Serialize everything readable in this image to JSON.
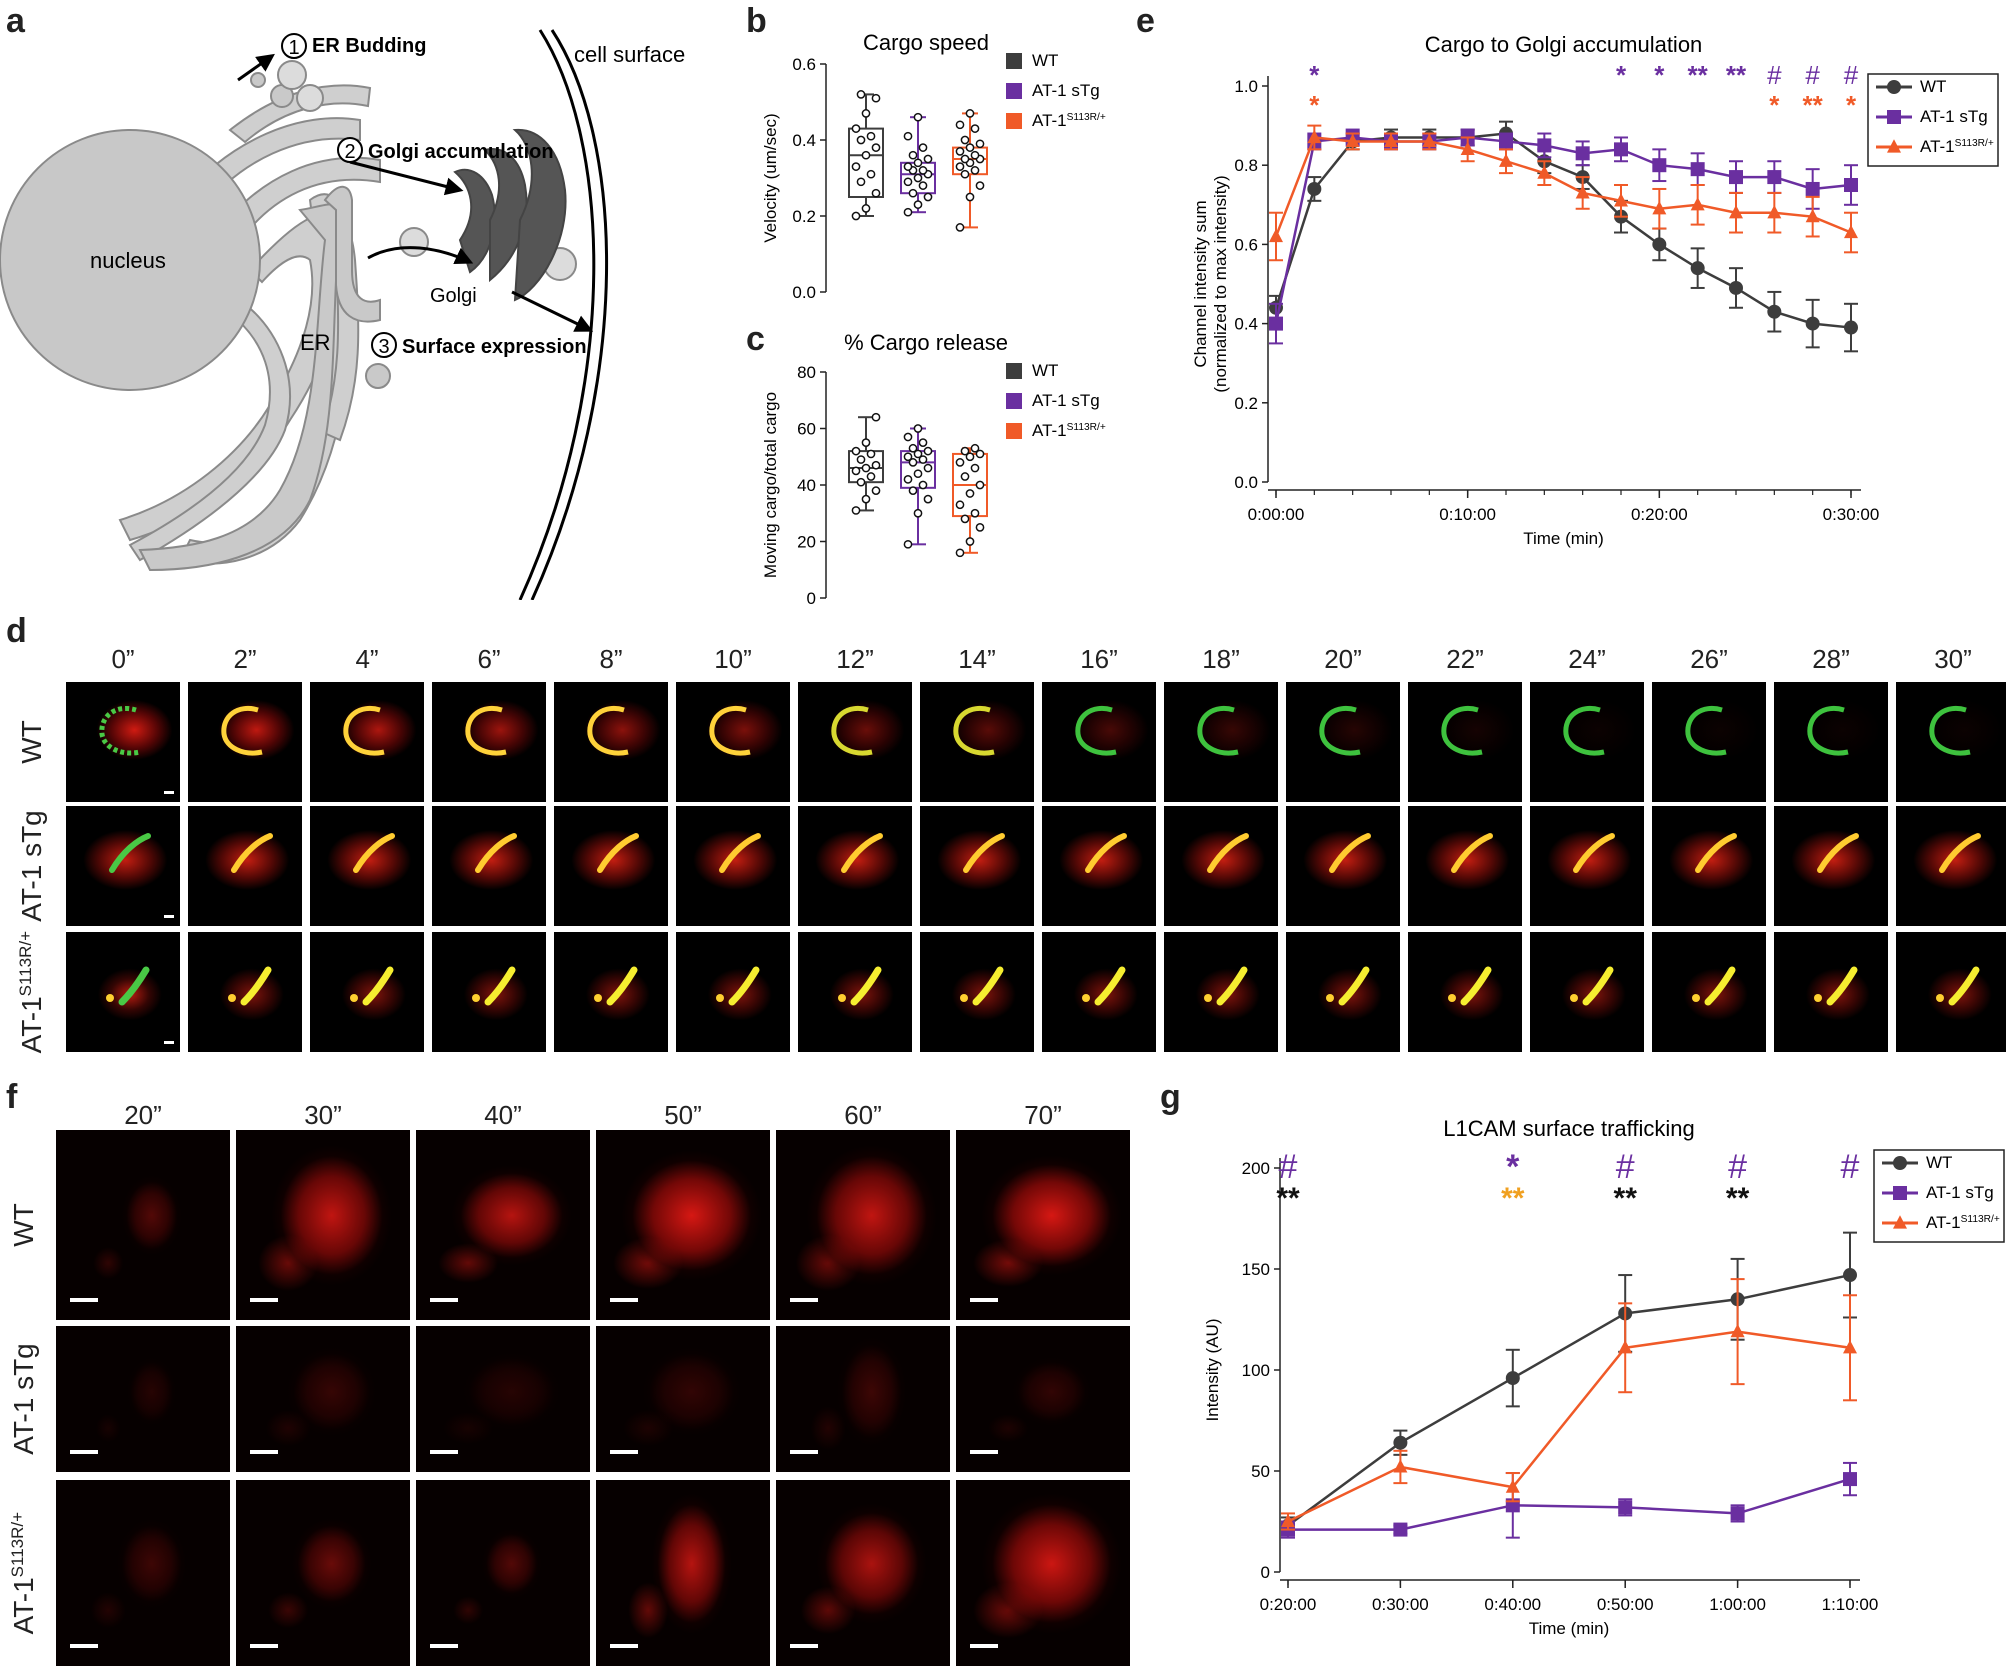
{
  "panels": {
    "a": {
      "letter": "a",
      "labels": {
        "nucleus": "nucleus",
        "er": "ER",
        "golgi": "Golgi",
        "cell_surface": "cell surface",
        "step1_num": "1",
        "step1": "ER Budding",
        "step2_num": "2",
        "step2": "Golgi accumulation",
        "step3_num": "3",
        "step3": "Surface expression"
      }
    },
    "b": {
      "letter": "b"
    },
    "c": {
      "letter": "c"
    },
    "d": {
      "letter": "d",
      "timepoints": [
        "0”",
        "2”",
        "4”",
        "6”",
        "8”",
        "10”",
        "12”",
        "14”",
        "16”",
        "18”",
        "20”",
        "22”",
        "24”",
        "26”",
        "28”",
        "30”"
      ],
      "rows": [
        "WT",
        "AT-1 sTg",
        "AT-1",
        "S113R/+"
      ]
    },
    "e": {
      "letter": "e"
    },
    "f": {
      "letter": "f",
      "timepoints": [
        "20”",
        "30”",
        "40”",
        "50”",
        "60”",
        "70”"
      ],
      "rows": [
        "WT",
        "AT-1 sTg",
        "AT-1",
        "S113R/+"
      ]
    },
    "g": {
      "letter": "g"
    }
  },
  "colors": {
    "wt": "#3d3d3d",
    "sTg": "#6a2fa0",
    "s113r": "#f05a28"
  },
  "chart_data": [
    {
      "id": "b",
      "type": "box",
      "title": "Cargo speed",
      "ylabel": "Velocity (um/sec)",
      "ylim": [
        0,
        0.6
      ],
      "yticks": [
        "0.0",
        "0.2",
        "0.4",
        "0.6"
      ],
      "legend": [
        "WT",
        "AT-1 sTg",
        "AT-1",
        "S113R/+"
      ],
      "groups": [
        {
          "name": "WT",
          "min": 0.2,
          "q1": 0.25,
          "median": 0.36,
          "q3": 0.43,
          "max": 0.52,
          "points": [
            0.2,
            0.22,
            0.26,
            0.29,
            0.31,
            0.33,
            0.36,
            0.38,
            0.4,
            0.41,
            0.43,
            0.47,
            0.51,
            0.52
          ]
        },
        {
          "name": "AT-1 sTg",
          "min": 0.21,
          "q1": 0.26,
          "median": 0.31,
          "q3": 0.34,
          "max": 0.46,
          "points": [
            0.21,
            0.23,
            0.25,
            0.26,
            0.28,
            0.29,
            0.3,
            0.31,
            0.32,
            0.32,
            0.33,
            0.34,
            0.35,
            0.36,
            0.38,
            0.41,
            0.46
          ]
        },
        {
          "name": "S113R/+",
          "min": 0.17,
          "q1": 0.31,
          "median": 0.35,
          "q3": 0.38,
          "max": 0.47,
          "points": [
            0.17,
            0.25,
            0.28,
            0.31,
            0.32,
            0.33,
            0.34,
            0.35,
            0.35,
            0.36,
            0.37,
            0.38,
            0.39,
            0.4,
            0.43,
            0.44,
            0.47
          ]
        }
      ]
    },
    {
      "id": "c",
      "type": "box",
      "title": "% Cargo release",
      "ylabel": "Moving cargo/total cargo",
      "ylim": [
        0,
        80
      ],
      "yticks": [
        "0",
        "20",
        "40",
        "60",
        "80"
      ],
      "legend": [
        "WT",
        "AT-1 sTg",
        "AT-1",
        "S113R/+"
      ],
      "groups": [
        {
          "name": "WT",
          "min": 31,
          "q1": 41,
          "median": 46,
          "q3": 52,
          "max": 64,
          "points": [
            31,
            35,
            38,
            41,
            43,
            45,
            46,
            47,
            49,
            51,
            52,
            55,
            64
          ]
        },
        {
          "name": "AT-1 sTg",
          "min": 19,
          "q1": 39,
          "median": 48,
          "q3": 52,
          "max": 60,
          "points": [
            19,
            30,
            35,
            38,
            40,
            42,
            44,
            46,
            48,
            49,
            50,
            51,
            52,
            53,
            55,
            57,
            60
          ]
        },
        {
          "name": "S113R/+",
          "min": 16,
          "q1": 29,
          "median": 40,
          "q3": 51,
          "max": 53,
          "points": [
            16,
            20,
            25,
            28,
            30,
            33,
            37,
            40,
            43,
            46,
            48,
            50,
            51,
            52,
            53
          ]
        }
      ]
    },
    {
      "id": "e",
      "type": "line",
      "title": "Cargo to Golgi accumulation",
      "xlabel": "Time (min)",
      "ylabel": "Channel intensity sum",
      "ylabel2": "(normalized to max intensity)",
      "ylim": [
        0,
        1.0
      ],
      "yticks": [
        "0.0",
        "0.2",
        "0.4",
        "0.6",
        "0.8",
        "1.0"
      ],
      "xtick_labels": [
        "0:00:00",
        "0:10:00",
        "0:20:00",
        "0:30:00"
      ],
      "x": [
        0,
        2,
        4,
        6,
        8,
        10,
        12,
        14,
        16,
        18,
        20,
        22,
        24,
        26,
        28,
        30
      ],
      "series": [
        {
          "name": "WT",
          "marker": "circle",
          "values": [
            0.44,
            0.74,
            0.86,
            0.87,
            0.87,
            0.87,
            0.88,
            0.81,
            0.77,
            0.67,
            0.6,
            0.54,
            0.49,
            0.43,
            0.4,
            0.39
          ],
          "err": [
            0.03,
            0.03,
            0.02,
            0.02,
            0.02,
            0.02,
            0.03,
            0.03,
            0.03,
            0.04,
            0.04,
            0.05,
            0.05,
            0.05,
            0.06,
            0.06
          ]
        },
        {
          "name": "AT-1 sTg",
          "marker": "square",
          "values": [
            0.4,
            0.86,
            0.87,
            0.86,
            0.86,
            0.87,
            0.86,
            0.85,
            0.83,
            0.84,
            0.8,
            0.79,
            0.77,
            0.77,
            0.74,
            0.75
          ],
          "err": [
            0.05,
            0.02,
            0.02,
            0.02,
            0.02,
            0.02,
            0.02,
            0.03,
            0.03,
            0.03,
            0.04,
            0.04,
            0.04,
            0.04,
            0.05,
            0.05
          ]
        },
        {
          "name": "S113R/+",
          "marker": "triangle",
          "values": [
            0.62,
            0.87,
            0.86,
            0.86,
            0.86,
            0.84,
            0.81,
            0.78,
            0.73,
            0.71,
            0.69,
            0.7,
            0.68,
            0.68,
            0.67,
            0.63
          ],
          "err": [
            0.06,
            0.03,
            0.02,
            0.02,
            0.02,
            0.03,
            0.03,
            0.03,
            0.04,
            0.04,
            0.05,
            0.05,
            0.05,
            0.05,
            0.05,
            0.05
          ]
        }
      ],
      "legend": [
        "WT",
        "AT-1 sTg",
        "AT-1",
        "S113R/+"
      ],
      "annotations_purple": [
        {
          "x": 2,
          "text": "*"
        },
        {
          "x": 18,
          "text": "*"
        },
        {
          "x": 20,
          "text": "*"
        },
        {
          "x": 22,
          "text": "**"
        },
        {
          "x": 24,
          "text": "**"
        },
        {
          "x": 26,
          "text": "#"
        },
        {
          "x": 28,
          "text": "#"
        },
        {
          "x": 30,
          "text": "#"
        }
      ],
      "annotations_orange": [
        {
          "x": 2,
          "text": "*"
        },
        {
          "x": 26,
          "text": "*"
        },
        {
          "x": 28,
          "text": "**"
        },
        {
          "x": 30,
          "text": "*"
        }
      ]
    },
    {
      "id": "g",
      "type": "line",
      "title": "L1CAM surface trafficking",
      "xlabel": "Time (min)",
      "ylabel": "Intensity (AU)",
      "ylim": [
        0,
        200
      ],
      "yticks": [
        "0",
        "50",
        "100",
        "150",
        "200"
      ],
      "xtick_labels": [
        "0:20:00",
        "0:30:00",
        "0:40:00",
        "0:50:00",
        "1:00:00",
        "1:10:00"
      ],
      "x": [
        20,
        30,
        40,
        50,
        60,
        70
      ],
      "series": [
        {
          "name": "WT",
          "marker": "circle",
          "values": [
            23,
            64,
            96,
            128,
            135,
            147
          ],
          "err": [
            4,
            6,
            14,
            19,
            20,
            21
          ]
        },
        {
          "name": "AT-1 sTg",
          "marker": "square",
          "values": [
            21,
            21,
            33,
            32,
            29,
            46
          ],
          "err": [
            4,
            2,
            16,
            4,
            4,
            8
          ]
        },
        {
          "name": "S113R/+",
          "marker": "triangle",
          "values": [
            25,
            52,
            42,
            111,
            119,
            111
          ],
          "err": [
            4,
            8,
            7,
            22,
            26,
            26
          ]
        }
      ],
      "legend": [
        "WT",
        "AT-1 sTg",
        "AT-1",
        "S113R/+"
      ],
      "annotations_purple": [
        {
          "x": 20,
          "text": "#"
        },
        {
          "x": 40,
          "text": "*"
        },
        {
          "x": 50,
          "text": "#"
        },
        {
          "x": 60,
          "text": "#"
        },
        {
          "x": 70,
          "text": "#"
        }
      ],
      "annotations_black": [
        {
          "x": 20,
          "text": "**"
        },
        {
          "x": 50,
          "text": "**"
        },
        {
          "x": 60,
          "text": "**"
        }
      ],
      "annotations_orange": [
        {
          "x": 40,
          "text": "**"
        }
      ]
    }
  ]
}
